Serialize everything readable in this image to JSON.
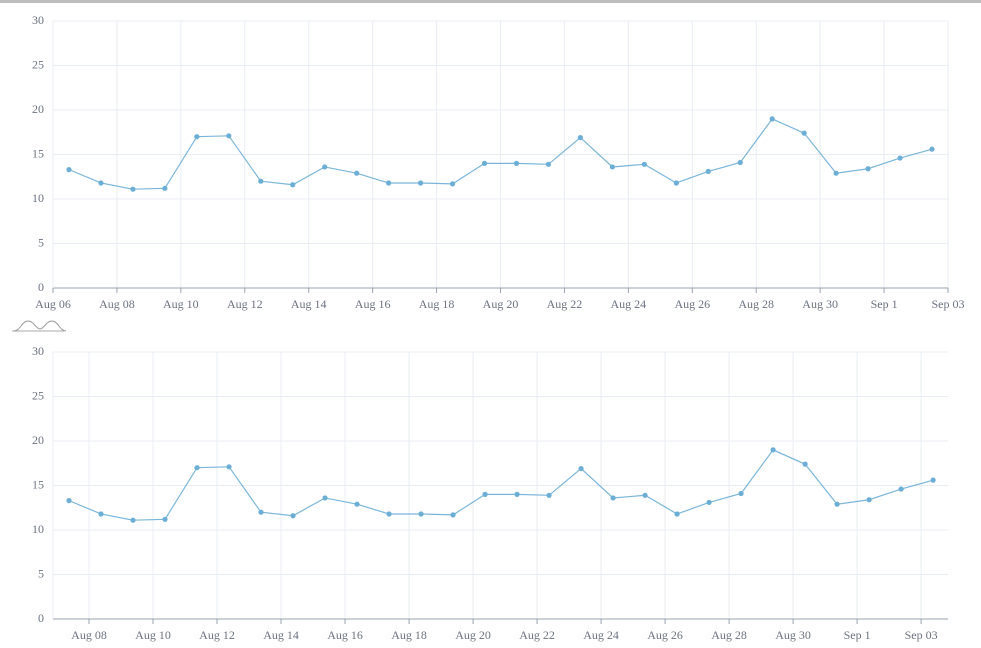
{
  "chart_data": [
    {
      "type": "line",
      "color": "#6baed6",
      "x": [
        6.5,
        7.5,
        8.5,
        9.5,
        10.5,
        11.5,
        12.5,
        13.5,
        14.5,
        15.5,
        16.5,
        17.5,
        18.5,
        19.5,
        20.5,
        21.5,
        22.5,
        23.5,
        24.5,
        25.5,
        26.5,
        27.5,
        28.5,
        29.5,
        30.5,
        31.5,
        32.5,
        33.5
      ],
      "values": [
        13.3,
        11.8,
        11.1,
        11.2,
        17.0,
        17.1,
        12.0,
        11.6,
        13.6,
        12.9,
        11.8,
        11.8,
        11.7,
        14.0,
        14.0,
        13.9,
        16.9,
        13.6,
        13.9,
        11.8,
        13.1,
        14.1,
        19.0,
        17.4,
        12.9,
        13.4,
        14.6,
        15.6
      ],
      "xlim": [
        6,
        34
      ],
      "xticks": [
        {
          "value": 6,
          "label": "Aug 06"
        },
        {
          "value": 8,
          "label": "Aug 08"
        },
        {
          "value": 10,
          "label": "Aug 10"
        },
        {
          "value": 12,
          "label": "Aug 12"
        },
        {
          "value": 14,
          "label": "Aug 14"
        },
        {
          "value": 16,
          "label": "Aug 16"
        },
        {
          "value": 18,
          "label": "Aug 18"
        },
        {
          "value": 20,
          "label": "Aug 20"
        },
        {
          "value": 22,
          "label": "Aug 22"
        },
        {
          "value": 24,
          "label": "Aug 24"
        },
        {
          "value": 26,
          "label": "Aug 26"
        },
        {
          "value": 28,
          "label": "Aug 28"
        },
        {
          "value": 30,
          "label": "Aug 30"
        },
        {
          "value": 32,
          "label": "Sep 1"
        },
        {
          "value": 34,
          "label": "Sep 03"
        }
      ],
      "ylim": [
        0,
        30
      ],
      "yticks": [
        0,
        5,
        10,
        15,
        20,
        25,
        30
      ],
      "grid": true
    },
    {
      "type": "line",
      "color": "#6baed6",
      "x": [
        7.375,
        8.375,
        9.375,
        10.375,
        11.375,
        12.375,
        13.375,
        14.375,
        15.375,
        16.375,
        17.375,
        18.375,
        19.375,
        20.375,
        21.375,
        22.375,
        23.375,
        24.375,
        25.375,
        26.375,
        27.375,
        28.375,
        29.375,
        30.375,
        31.375,
        32.375,
        33.375,
        34.375
      ],
      "values": [
        13.3,
        11.8,
        11.1,
        11.2,
        17.0,
        17.1,
        12.0,
        11.6,
        13.6,
        12.9,
        11.8,
        11.8,
        11.7,
        14.0,
        14.0,
        13.9,
        16.9,
        13.6,
        13.9,
        11.8,
        13.1,
        14.1,
        19.0,
        17.4,
        12.9,
        13.4,
        14.6,
        15.6
      ],
      "xlim": [
        6.875,
        34.84
      ],
      "xticks": [
        {
          "value": 8,
          "label": "Aug 08"
        },
        {
          "value": 10,
          "label": "Aug 10"
        },
        {
          "value": 12,
          "label": "Aug 12"
        },
        {
          "value": 14,
          "label": "Aug 14"
        },
        {
          "value": 16,
          "label": "Aug 16"
        },
        {
          "value": 18,
          "label": "Aug 18"
        },
        {
          "value": 20,
          "label": "Aug 20"
        },
        {
          "value": 22,
          "label": "Aug 22"
        },
        {
          "value": 24,
          "label": "Aug 24"
        },
        {
          "value": 26,
          "label": "Aug 26"
        },
        {
          "value": 28,
          "label": "Aug 28"
        },
        {
          "value": 30,
          "label": "Aug 30"
        },
        {
          "value": 32,
          "label": "Sep 1"
        },
        {
          "value": 34,
          "label": "Sep 03"
        }
      ],
      "ylim": [
        0,
        30
      ],
      "yticks": [
        0,
        5,
        10,
        15,
        20,
        25,
        30
      ],
      "grid": true
    }
  ]
}
